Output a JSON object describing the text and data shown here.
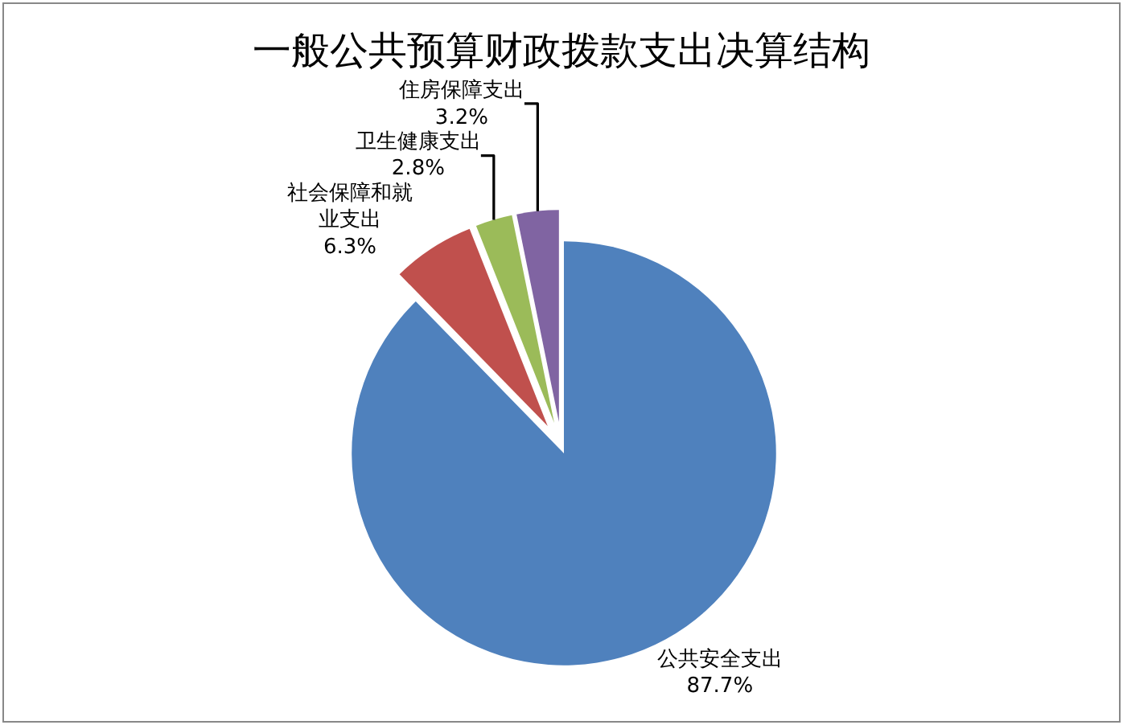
{
  "chart_data": {
    "type": "pie",
    "title": "一般公共预算财政拨款支出决算结构",
    "categories": [
      "公共安全支出",
      "社会保障和就业支出",
      "卫生健康支出",
      "住房保障支出"
    ],
    "values": [
      87.7,
      6.3,
      2.8,
      3.2
    ],
    "colors": [
      "#4f81bd",
      "#c0504d",
      "#9bbb59",
      "#8064a2"
    ],
    "value_labels": [
      "87.7%",
      "6.3%",
      "2.8%",
      "3.2%"
    ],
    "legend": false
  }
}
